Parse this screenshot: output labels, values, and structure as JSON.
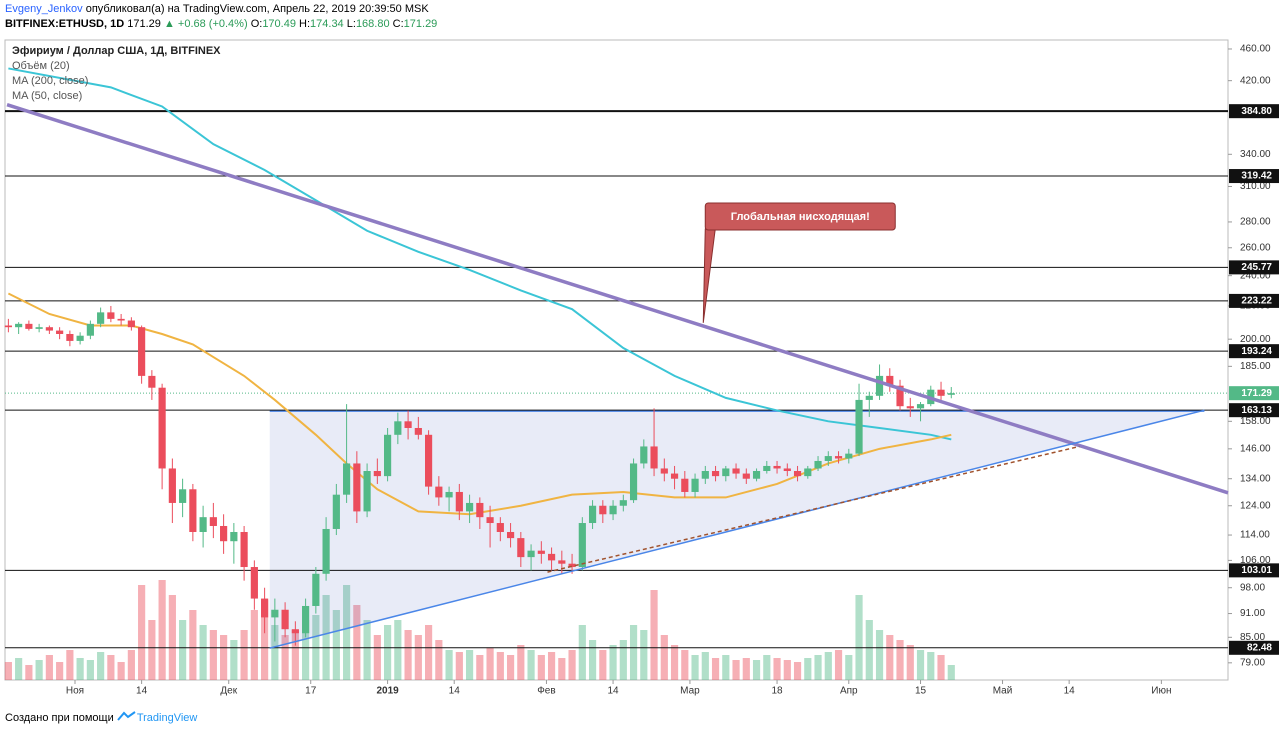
{
  "header": {
    "author": "Evgeny_Jenkov",
    "published": " опубликовал(а) на TradingView.com, Апрель 22, 2019 20:39:50 MSK",
    "symbol": "BITFINEX:ETHUSD, 1D",
    "last": "171.29",
    "change": "▲ +0.68 (+0.4%)",
    "ohlc": [
      [
        "O:",
        "170.49"
      ],
      [
        "H:",
        "174.34"
      ],
      [
        "L:",
        "168.80"
      ],
      [
        "C:",
        "171.29"
      ]
    ]
  },
  "footer": {
    "text": "Создано при помощи",
    "brand": "TradingView"
  },
  "chart_data": {
    "type": "candlestick",
    "legend": [
      "Эфириум / Доллар США, 1Д, BITFINEX",
      "Объём (20)",
      "MA (200, close)",
      "MA (50, close)"
    ],
    "log_scale": true,
    "grid": false,
    "up_color": "#53b987",
    "down_color": "#eb4d5c",
    "xlim": [
      -0.33,
      119
    ],
    "ylim": [
      75.2,
      472
    ],
    "y2lim": [
      0,
      640
    ],
    "xticks": [
      {
        "value": 6.5,
        "label": "Ноя"
      },
      {
        "value": 13,
        "label": "14"
      },
      {
        "value": 21.5,
        "label": "Дек"
      },
      {
        "value": 29.5,
        "label": "17"
      },
      {
        "value": 37,
        "label": "2019"
      },
      {
        "value": 43.5,
        "label": "14"
      },
      {
        "value": 52.5,
        "label": "Фев"
      },
      {
        "value": 59,
        "label": "14"
      },
      {
        "value": 66.5,
        "label": "Мар"
      },
      {
        "value": 75,
        "label": "18"
      },
      {
        "value": 82,
        "label": "Апр"
      },
      {
        "value": 89,
        "label": "15"
      },
      {
        "value": 97,
        "label": "Май"
      },
      {
        "value": 103.5,
        "label": "14"
      },
      {
        "value": 112.5,
        "label": "Июн"
      }
    ],
    "yticks": [
      {
        "value": 460,
        "label": "460.00"
      },
      {
        "value": 420,
        "label": "420.00"
      },
      {
        "value": 340,
        "label": "340.00"
      },
      {
        "value": 310,
        "label": "310.00"
      },
      {
        "value": 280,
        "label": "280.00"
      },
      {
        "value": 260,
        "label": "260.00"
      },
      {
        "value": 240,
        "label": "240.00"
      },
      {
        "value": 220,
        "label": "220.00"
      },
      {
        "value": 200,
        "label": "200.00"
      },
      {
        "value": 185,
        "label": "185.00"
      },
      {
        "value": 158,
        "label": "158.00"
      },
      {
        "value": 146,
        "label": "146.00"
      },
      {
        "value": 134,
        "label": "134.00"
      },
      {
        "value": 124,
        "label": "124.00"
      },
      {
        "value": 114,
        "label": "114.00"
      },
      {
        "value": 106,
        "label": "106.00"
      },
      {
        "value": 98,
        "label": "98.00"
      },
      {
        "value": 91,
        "label": "91.00"
      },
      {
        "value": 85,
        "label": "85.00"
      },
      {
        "value": 79,
        "label": "79.00"
      }
    ],
    "levels": [
      {
        "value": 384.8,
        "label": "384.80"
      },
      {
        "value": 319.42,
        "label": "319.42"
      },
      {
        "value": 245.77,
        "label": "245.77"
      },
      {
        "value": 223.22,
        "label": "223.22"
      },
      {
        "value": 193.24,
        "label": "193.24"
      },
      {
        "value": 163.13,
        "label": "163.13"
      },
      {
        "value": 103.01,
        "label": "103.01"
      },
      {
        "value": 82.48,
        "label": "82.48"
      }
    ],
    "last_price": {
      "value": 171.29,
      "label": "171.29",
      "color": "#53b987"
    },
    "candles": [
      [
        208,
        212,
        204,
        207
      ],
      [
        207,
        210,
        203,
        209
      ],
      [
        209,
        211,
        205,
        206
      ],
      [
        206,
        209,
        204,
        207
      ],
      [
        207,
        208,
        203,
        205
      ],
      [
        205,
        207,
        200,
        203
      ],
      [
        203,
        205,
        196,
        199
      ],
      [
        199,
        204,
        197,
        202
      ],
      [
        202,
        211,
        200,
        209
      ],
      [
        209,
        219,
        207,
        216
      ],
      [
        216,
        220,
        210,
        212
      ],
      [
        212,
        215,
        208,
        211
      ],
      [
        211,
        213,
        205,
        207
      ],
      [
        207,
        208,
        176,
        180
      ],
      [
        180,
        183,
        168,
        174
      ],
      [
        174,
        176,
        130,
        138
      ],
      [
        138,
        142,
        118,
        125
      ],
      [
        125,
        134,
        120,
        130
      ],
      [
        130,
        132,
        112,
        115
      ],
      [
        115,
        124,
        110,
        120
      ],
      [
        120,
        125,
        113,
        117
      ],
      [
        117,
        121,
        108,
        112
      ],
      [
        112,
        118,
        105,
        115
      ],
      [
        115,
        117,
        100,
        104
      ],
      [
        104,
        106,
        92,
        95
      ],
      [
        95,
        98,
        86,
        90
      ],
      [
        90,
        95,
        84,
        92
      ],
      [
        92,
        94,
        85,
        87
      ],
      [
        87,
        89,
        83,
        86
      ],
      [
        86,
        95,
        85,
        93
      ],
      [
        93,
        104,
        91,
        102
      ],
      [
        102,
        120,
        100,
        116
      ],
      [
        116,
        132,
        114,
        128
      ],
      [
        128,
        166,
        125,
        140
      ],
      [
        140,
        145,
        118,
        122
      ],
      [
        122,
        140,
        120,
        137
      ],
      [
        137,
        142,
        132,
        135
      ],
      [
        135,
        155,
        133,
        152
      ],
      [
        152,
        162,
        148,
        158
      ],
      [
        158,
        163,
        150,
        155
      ],
      [
        155,
        160,
        150,
        152
      ],
      [
        152,
        154,
        128,
        131
      ],
      [
        131,
        135,
        124,
        127
      ],
      [
        127,
        131,
        122,
        129
      ],
      [
        129,
        132,
        119,
        122
      ],
      [
        122,
        128,
        118,
        125
      ],
      [
        125,
        127,
        116,
        120
      ],
      [
        120,
        124,
        110,
        118
      ],
      [
        118,
        120,
        112,
        115
      ],
      [
        115,
        118,
        110,
        113
      ],
      [
        113,
        115,
        104,
        107
      ],
      [
        107,
        111,
        103,
        109
      ],
      [
        109,
        112,
        105,
        108
      ],
      [
        108,
        110,
        103,
        106
      ],
      [
        106,
        109,
        102,
        105
      ],
      [
        105,
        108,
        102,
        104
      ],
      [
        104,
        120,
        103,
        118
      ],
      [
        118,
        126,
        116,
        124
      ],
      [
        124,
        126,
        118,
        121
      ],
      [
        121,
        126,
        119,
        124
      ],
      [
        124,
        128,
        122,
        126
      ],
      [
        126,
        142,
        125,
        140
      ],
      [
        140,
        150,
        138,
        147
      ],
      [
        147,
        164,
        135,
        138
      ],
      [
        138,
        142,
        133,
        136
      ],
      [
        136,
        139,
        130,
        134
      ],
      [
        134,
        137,
        127,
        129
      ],
      [
        129,
        136,
        127,
        134
      ],
      [
        134,
        139,
        132,
        137
      ],
      [
        137,
        139,
        133,
        135
      ],
      [
        135,
        139,
        133,
        138
      ],
      [
        138,
        140,
        134,
        136
      ],
      [
        136,
        138,
        132,
        134
      ],
      [
        134,
        138,
        133,
        137
      ],
      [
        137,
        141,
        136,
        139
      ],
      [
        139,
        141,
        136,
        138
      ],
      [
        138,
        140,
        135,
        137
      ],
      [
        137,
        139,
        133,
        135
      ],
      [
        135,
        139,
        134,
        138
      ],
      [
        138,
        143,
        137,
        141
      ],
      [
        141,
        145,
        139,
        143
      ],
      [
        143,
        145,
        140,
        142
      ],
      [
        142,
        146,
        140,
        144
      ],
      [
        144,
        176,
        143,
        168
      ],
      [
        168,
        172,
        160,
        170
      ],
      [
        170,
        186,
        168,
        180
      ],
      [
        180,
        184,
        172,
        175
      ],
      [
        175,
        178,
        163,
        165
      ],
      [
        165,
        169,
        160,
        164
      ],
      [
        164,
        167,
        158,
        166
      ],
      [
        166,
        175,
        165,
        173
      ],
      [
        173,
        177,
        168,
        170
      ],
      [
        170.49,
        174.34,
        168.8,
        171.29
      ]
    ],
    "volume": [
      18,
      22,
      15,
      20,
      25,
      18,
      30,
      22,
      20,
      28,
      25,
      18,
      30,
      95,
      60,
      100,
      85,
      60,
      70,
      55,
      50,
      45,
      40,
      50,
      70,
      80,
      55,
      45,
      50,
      60,
      65,
      85,
      70,
      95,
      75,
      60,
      45,
      55,
      60,
      50,
      45,
      55,
      40,
      30,
      28,
      30,
      25,
      32,
      28,
      25,
      35,
      30,
      25,
      28,
      22,
      30,
      55,
      40,
      30,
      35,
      40,
      55,
      50,
      90,
      45,
      35,
      30,
      25,
      28,
      22,
      25,
      20,
      22,
      20,
      25,
      22,
      20,
      18,
      22,
      25,
      28,
      30,
      25,
      85,
      60,
      50,
      45,
      40,
      35,
      30,
      28,
      25,
      15
    ],
    "ma": [
      {
        "color": "#3bc5d6",
        "x": [
          0,
          10,
          15,
          20,
          25,
          30,
          35,
          40,
          45,
          50,
          55,
          60,
          65,
          70,
          75,
          80,
          85,
          90,
          92
        ],
        "values": [
          435,
          412,
          390,
          350,
          325,
          298,
          273,
          257,
          244,
          230,
          218,
          195,
          180,
          169,
          163,
          158,
          155,
          152,
          150
        ]
      },
      {
        "color": "#f0b442",
        "x": [
          0,
          4,
          8,
          12,
          15,
          18,
          20,
          23,
          26,
          30,
          33,
          36,
          40,
          45,
          50,
          55,
          60,
          65,
          70,
          75,
          80,
          85,
          90,
          92
        ],
        "values": [
          228,
          215,
          208,
          208,
          203,
          197,
          190,
          180,
          168,
          152,
          140,
          130,
          122,
          121,
          124,
          128,
          129,
          127,
          127,
          132,
          140,
          146,
          150,
          152
        ]
      }
    ],
    "drawings": {
      "descending": {
        "color": "#8e7cc3",
        "points": [
          [
            -0.13,
            392
          ],
          [
            119,
            128.7
          ]
        ]
      },
      "support": {
        "color": "#4a86e8",
        "points": [
          [
            25.5,
            82.4
          ],
          [
            116.7,
            163.13
          ]
        ]
      },
      "dashed": {
        "color": "#a0522d",
        "points": [
          [
            52.6,
            102.5
          ],
          [
            104.5,
            147
          ]
        ]
      }
    },
    "annotation": {
      "text": "Глобальная нисходящая!",
      "point": [
        67.8,
        209.6
      ],
      "color": "#c9595a"
    }
  }
}
